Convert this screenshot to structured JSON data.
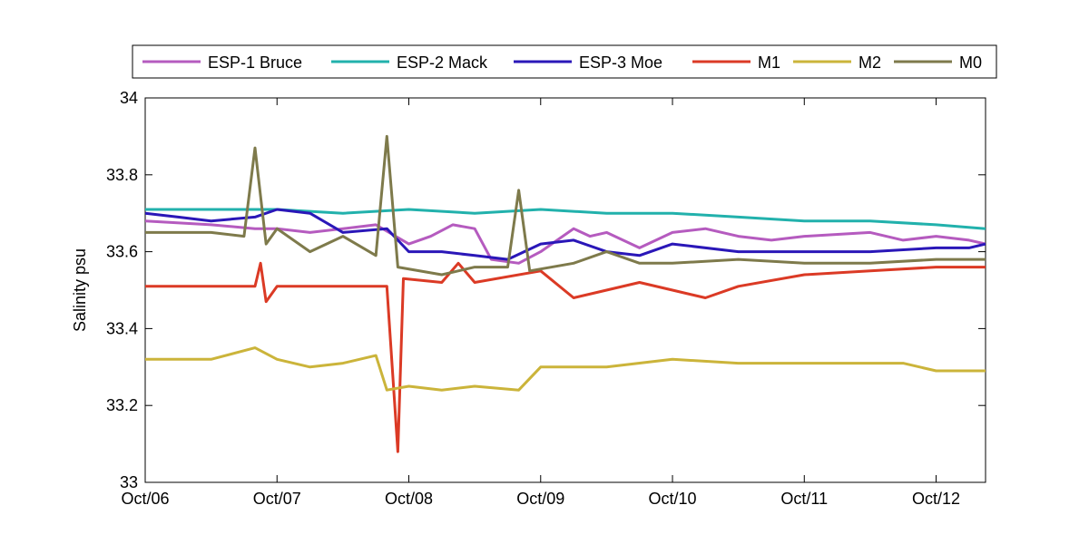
{
  "chart_data": {
    "type": "line",
    "title": "",
    "xlabel": "",
    "ylabel": "Salinity psu",
    "x_tick_labels": [
      "Oct/06",
      "Oct/07",
      "Oct/08",
      "Oct/09",
      "Oct/10",
      "Oct/11",
      "Oct/12"
    ],
    "y_tick_labels": [
      "33",
      "33.2",
      "33.4",
      "33.6",
      "33.8",
      "34"
    ],
    "xlim": [
      "2013-10-06",
      "2013-10-12 09:00"
    ],
    "ylim": [
      33,
      34
    ],
    "grid": false,
    "legend_position": "top, outside plot, single row",
    "series": [
      {
        "name": "ESP-1 Bruce",
        "color": "#b55bbf",
        "points": [
          [
            "2013-10-06 00:00",
            33.68
          ],
          [
            "2013-10-06 12:00",
            33.67
          ],
          [
            "2013-10-06 20:00",
            33.66
          ],
          [
            "2013-10-07 00:00",
            33.66
          ],
          [
            "2013-10-07 06:00",
            33.65
          ],
          [
            "2013-10-07 12:00",
            33.66
          ],
          [
            "2013-10-07 18:00",
            33.67
          ],
          [
            "2013-10-08 00:00",
            33.62
          ],
          [
            "2013-10-08 04:00",
            33.64
          ],
          [
            "2013-10-08 08:00",
            33.67
          ],
          [
            "2013-10-08 12:00",
            33.66
          ],
          [
            "2013-10-08 15:00",
            33.58
          ],
          [
            "2013-10-08 20:00",
            33.57
          ],
          [
            "2013-10-09 00:00",
            33.6
          ],
          [
            "2013-10-09 06:00",
            33.66
          ],
          [
            "2013-10-09 09:00",
            33.64
          ],
          [
            "2013-10-09 12:00",
            33.65
          ],
          [
            "2013-10-09 18:00",
            33.61
          ],
          [
            "2013-10-10 00:00",
            33.65
          ],
          [
            "2013-10-10 06:00",
            33.66
          ],
          [
            "2013-10-10 12:00",
            33.64
          ],
          [
            "2013-10-10 18:00",
            33.63
          ],
          [
            "2013-10-11 00:00",
            33.64
          ],
          [
            "2013-10-11 12:00",
            33.65
          ],
          [
            "2013-10-11 18:00",
            33.63
          ],
          [
            "2013-10-12 00:00",
            33.64
          ],
          [
            "2013-10-12 06:00",
            33.63
          ],
          [
            "2013-10-12 09:00",
            33.62
          ]
        ]
      },
      {
        "name": "ESP-2 Mack",
        "color": "#22b1ac",
        "points": [
          [
            "2013-10-06 00:00",
            33.71
          ],
          [
            "2013-10-06 12:00",
            33.71
          ],
          [
            "2013-10-07 00:00",
            33.71
          ],
          [
            "2013-10-07 12:00",
            33.7
          ],
          [
            "2013-10-08 00:00",
            33.71
          ],
          [
            "2013-10-08 12:00",
            33.7
          ],
          [
            "2013-10-09 00:00",
            33.71
          ],
          [
            "2013-10-09 12:00",
            33.7
          ],
          [
            "2013-10-10 00:00",
            33.7
          ],
          [
            "2013-10-10 12:00",
            33.69
          ],
          [
            "2013-10-11 00:00",
            33.68
          ],
          [
            "2013-10-11 12:00",
            33.68
          ],
          [
            "2013-10-12 00:00",
            33.67
          ],
          [
            "2013-10-12 09:00",
            33.66
          ]
        ]
      },
      {
        "name": "ESP-3 Moe",
        "color": "#2a17b8",
        "points": [
          [
            "2013-10-06 00:00",
            33.7
          ],
          [
            "2013-10-06 06:00",
            33.69
          ],
          [
            "2013-10-06 12:00",
            33.68
          ],
          [
            "2013-10-06 20:00",
            33.69
          ],
          [
            "2013-10-07 00:00",
            33.71
          ],
          [
            "2013-10-07 06:00",
            33.7
          ],
          [
            "2013-10-07 12:00",
            33.65
          ],
          [
            "2013-10-07 20:00",
            33.66
          ],
          [
            "2013-10-08 00:00",
            33.6
          ],
          [
            "2013-10-08 06:00",
            33.6
          ],
          [
            "2013-10-08 12:00",
            33.59
          ],
          [
            "2013-10-08 18:00",
            33.58
          ],
          [
            "2013-10-09 00:00",
            33.62
          ],
          [
            "2013-10-09 06:00",
            33.63
          ],
          [
            "2013-10-09 12:00",
            33.6
          ],
          [
            "2013-10-09 18:00",
            33.59
          ],
          [
            "2013-10-10 00:00",
            33.62
          ],
          [
            "2013-10-10 12:00",
            33.6
          ],
          [
            "2013-10-11 00:00",
            33.6
          ],
          [
            "2013-10-11 12:00",
            33.6
          ],
          [
            "2013-10-12 00:00",
            33.61
          ],
          [
            "2013-10-12 06:00",
            33.61
          ],
          [
            "2013-10-12 09:00",
            33.62
          ]
        ]
      },
      {
        "name": "M1",
        "color": "#db3a25",
        "points": [
          [
            "2013-10-06 00:00",
            33.51
          ],
          [
            "2013-10-06 12:00",
            33.51
          ],
          [
            "2013-10-06 20:00",
            33.51
          ],
          [
            "2013-10-06 21:00",
            33.57
          ],
          [
            "2013-10-06 22:00",
            33.47
          ],
          [
            "2013-10-07 00:00",
            33.51
          ],
          [
            "2013-10-07 12:00",
            33.51
          ],
          [
            "2013-10-07 20:00",
            33.51
          ],
          [
            "2013-10-07 22:00",
            33.08
          ],
          [
            "2013-10-07 23:00",
            33.53
          ],
          [
            "2013-10-08 06:00",
            33.52
          ],
          [
            "2013-10-08 09:00",
            33.57
          ],
          [
            "2013-10-08 12:00",
            33.52
          ],
          [
            "2013-10-09 00:00",
            33.55
          ],
          [
            "2013-10-09 06:00",
            33.48
          ],
          [
            "2013-10-09 12:00",
            33.5
          ],
          [
            "2013-10-09 18:00",
            33.52
          ],
          [
            "2013-10-10 00:00",
            33.5
          ],
          [
            "2013-10-10 06:00",
            33.48
          ],
          [
            "2013-10-10 12:00",
            33.51
          ],
          [
            "2013-10-11 00:00",
            33.54
          ],
          [
            "2013-10-11 12:00",
            33.55
          ],
          [
            "2013-10-12 00:00",
            33.56
          ],
          [
            "2013-10-12 09:00",
            33.56
          ]
        ]
      },
      {
        "name": "M2",
        "color": "#cbb43a",
        "points": [
          [
            "2013-10-06 00:00",
            33.32
          ],
          [
            "2013-10-06 12:00",
            33.32
          ],
          [
            "2013-10-06 20:00",
            33.35
          ],
          [
            "2013-10-07 00:00",
            33.32
          ],
          [
            "2013-10-07 06:00",
            33.3
          ],
          [
            "2013-10-07 12:00",
            33.31
          ],
          [
            "2013-10-07 18:00",
            33.33
          ],
          [
            "2013-10-07 20:00",
            33.24
          ],
          [
            "2013-10-08 00:00",
            33.25
          ],
          [
            "2013-10-08 06:00",
            33.24
          ],
          [
            "2013-10-08 12:00",
            33.25
          ],
          [
            "2013-10-08 20:00",
            33.24
          ],
          [
            "2013-10-09 00:00",
            33.3
          ],
          [
            "2013-10-09 12:00",
            33.3
          ],
          [
            "2013-10-10 00:00",
            33.32
          ],
          [
            "2013-10-10 12:00",
            33.31
          ],
          [
            "2013-10-11 00:00",
            33.31
          ],
          [
            "2013-10-11 12:00",
            33.31
          ],
          [
            "2013-10-11 18:00",
            33.31
          ],
          [
            "2013-10-12 00:00",
            33.29
          ],
          [
            "2013-10-12 09:00",
            33.29
          ]
        ]
      },
      {
        "name": "M0",
        "color": "#7e7a4b",
        "points": [
          [
            "2013-10-06 00:00",
            33.65
          ],
          [
            "2013-10-06 12:00",
            33.65
          ],
          [
            "2013-10-06 18:00",
            33.64
          ],
          [
            "2013-10-06 20:00",
            33.87
          ],
          [
            "2013-10-06 22:00",
            33.62
          ],
          [
            "2013-10-07 00:00",
            33.66
          ],
          [
            "2013-10-07 06:00",
            33.6
          ],
          [
            "2013-10-07 12:00",
            33.64
          ],
          [
            "2013-10-07 18:00",
            33.59
          ],
          [
            "2013-10-07 20:00",
            33.9
          ],
          [
            "2013-10-07 22:00",
            33.56
          ],
          [
            "2013-10-08 06:00",
            33.54
          ],
          [
            "2013-10-08 12:00",
            33.56
          ],
          [
            "2013-10-08 18:00",
            33.56
          ],
          [
            "2013-10-08 20:00",
            33.76
          ],
          [
            "2013-10-08 22:00",
            33.55
          ],
          [
            "2013-10-09 06:00",
            33.57
          ],
          [
            "2013-10-09 12:00",
            33.6
          ],
          [
            "2013-10-09 18:00",
            33.57
          ],
          [
            "2013-10-10 00:00",
            33.57
          ],
          [
            "2013-10-10 12:00",
            33.58
          ],
          [
            "2013-10-11 00:00",
            33.57
          ],
          [
            "2013-10-11 12:00",
            33.57
          ],
          [
            "2013-10-12 00:00",
            33.58
          ],
          [
            "2013-10-12 09:00",
            33.58
          ]
        ]
      }
    ]
  }
}
